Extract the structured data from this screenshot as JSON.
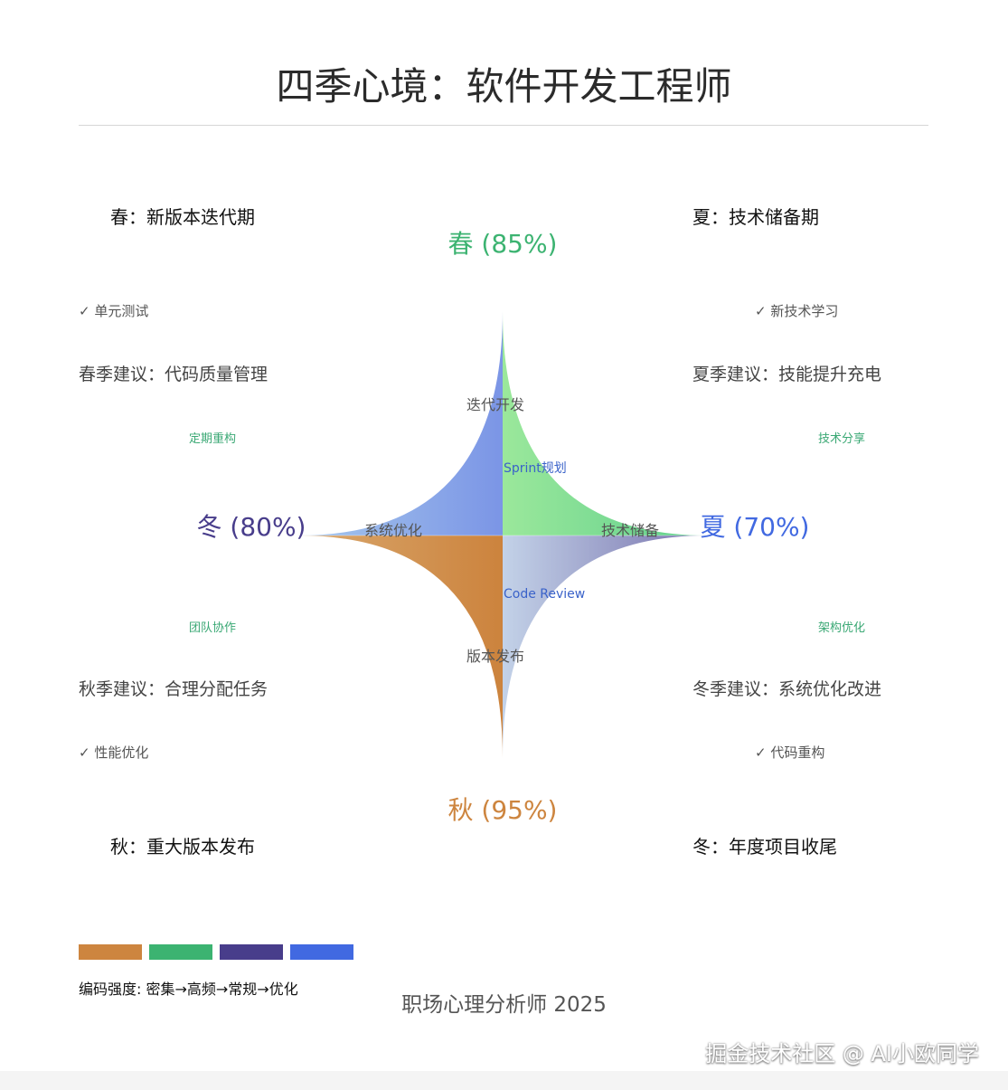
{
  "title": "四季心境：软件开发工程师",
  "seasons": {
    "spring": {
      "heading": "春：新版本迭代期",
      "percent_label": "春 (85%)",
      "check": "✓ 单元测试",
      "advice": "春季建议：代码质量管理",
      "tip": "定期重构",
      "color": "#3cb371"
    },
    "summer": {
      "heading": "夏：技术储备期",
      "percent_label": "夏 (70%)",
      "check": "✓ 新技术学习",
      "advice": "夏季建议：技能提升充电",
      "tip": "技术分享",
      "color": "#4169e1"
    },
    "autumn": {
      "heading": "秋：重大版本发布",
      "percent_label": "秋 (95%)",
      "check": "✓ 性能优化",
      "advice": "秋季建议：合理分配任务",
      "tip": "团队协作",
      "color": "#cd853f"
    },
    "winter": {
      "heading": "冬：年度项目收尾",
      "percent_label": "冬 (80%)",
      "check": "✓ 代码重构",
      "advice": "冬季建议：系统优化改进",
      "tip": "架构优化",
      "color": "#483d8b"
    }
  },
  "diagram": {
    "inner_labels": {
      "top": "迭代开发",
      "left": "系统优化",
      "right": "技术储备",
      "bottom": "版本发布",
      "sprint": "Sprint规划",
      "code_review": "Code Review"
    }
  },
  "legend": {
    "colors": [
      "#cd853f",
      "#3cb371",
      "#483d8b",
      "#4169e1"
    ],
    "caption": "编码强度: 密集→高频→常规→优化"
  },
  "footer": {
    "author": "职场心理分析师 2025",
    "watermark": "掘金技术社区 @ AI小欧同学"
  }
}
